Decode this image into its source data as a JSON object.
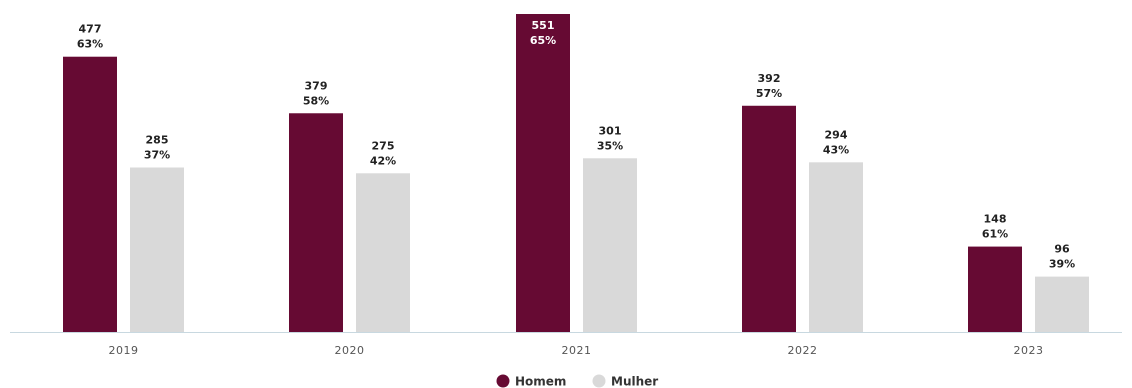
{
  "chart_data": {
    "type": "bar",
    "title": "",
    "xlabel": "",
    "ylabel": "",
    "grid": false,
    "legend_position": "bottom-center",
    "ylim": [
      0,
      551
    ],
    "categories": [
      "2019",
      "2020",
      "2021",
      "2022",
      "2023"
    ],
    "series": [
      {
        "name": "Homem",
        "color": "#660a33",
        "values": [
          477,
          379,
          551,
          392,
          148
        ],
        "percent_labels": [
          "63%",
          "58%",
          "65%",
          "57%",
          "61%"
        ]
      },
      {
        "name": "Mulher",
        "color": "#d9d9d9",
        "values": [
          285,
          275,
          301,
          294,
          96
        ],
        "percent_labels": [
          "37%",
          "42%",
          "35%",
          "43%",
          "39%"
        ]
      }
    ],
    "axis_color": "#c8d8e0"
  }
}
